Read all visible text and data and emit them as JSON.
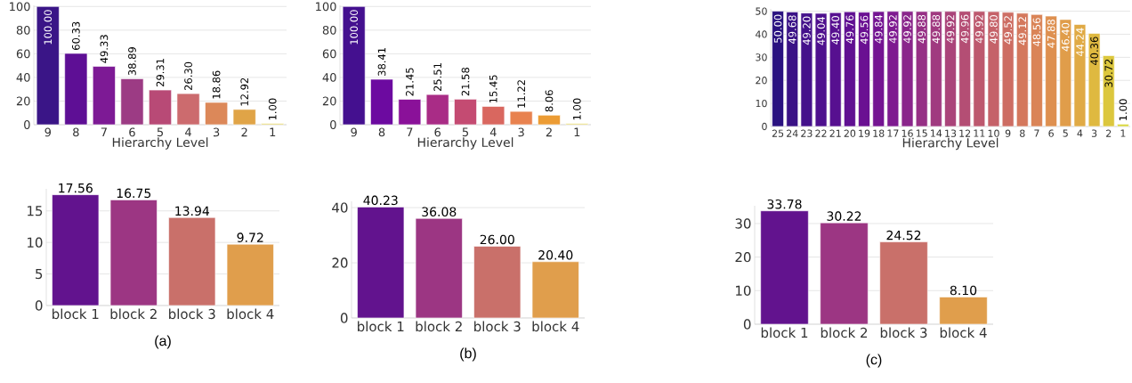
{
  "chart_data": [
    {
      "type": "bar",
      "xlabel": "Hierarchy Level",
      "categories": [
        "9",
        "8",
        "7",
        "6",
        "5",
        "4",
        "3",
        "2",
        "1"
      ],
      "values": [
        100.0,
        60.33,
        49.33,
        38.89,
        29.31,
        26.3,
        18.86,
        12.92,
        1.0
      ],
      "value_labels": [
        "100.00",
        "60.33",
        "49.33",
        "38.89",
        "29.31",
        "26.30",
        "18.86",
        "12.92",
        "1.00"
      ],
      "colors": [
        "#3a1587",
        "#5e0f95",
        "#7d1a95",
        "#9c3b84",
        "#b84a76",
        "#cc6b6e",
        "#dc8859",
        "#e0a447",
        "#e4d360"
      ],
      "ylim": [
        0,
        101
      ],
      "yticks": [
        0,
        20,
        40,
        60,
        80,
        100
      ],
      "grid": "y"
    },
    {
      "type": "bar",
      "xlabel": "Hierarchy Level",
      "categories": [
        "9",
        "8",
        "7",
        "6",
        "5",
        "4",
        "3",
        "2",
        "1"
      ],
      "values": [
        100.0,
        38.41,
        21.45,
        25.51,
        21.58,
        15.45,
        11.22,
        8.06,
        1.0
      ],
      "value_labels": [
        "100.00",
        "38.41",
        "21.45",
        "25.51",
        "21.58",
        "15.45",
        "11.22",
        "8.06",
        "1.00"
      ],
      "colors": [
        "#44108f",
        "#6c0aa0",
        "#8a1199",
        "#a92c86",
        "#c44b72",
        "#d9675f",
        "#e8824f",
        "#ec9c34",
        "#e8d86a"
      ],
      "ylim": [
        0,
        101
      ],
      "yticks": [
        0,
        20,
        40,
        60,
        80,
        100
      ],
      "grid": "y"
    },
    {
      "type": "bar",
      "xlabel": "Hierarchy Level",
      "categories": [
        "25",
        "24",
        "23",
        "22",
        "21",
        "20",
        "19",
        "18",
        "17",
        "16",
        "15",
        "14",
        "13",
        "12",
        "11",
        "10",
        "9",
        "8",
        "7",
        "6",
        "5",
        "4",
        "3",
        "2",
        "1"
      ],
      "values": [
        50.0,
        49.68,
        49.2,
        49.04,
        49.4,
        49.76,
        49.56,
        49.84,
        49.92,
        49.92,
        49.88,
        49.88,
        49.92,
        49.96,
        49.92,
        49.8,
        49.52,
        49.12,
        48.56,
        47.88,
        46.4,
        44.24,
        40.36,
        30.72,
        1.0
      ],
      "value_labels": [
        "50.00",
        "49.68",
        "49.20",
        "49.04",
        "49.40",
        "49.76",
        "49.56",
        "49.84",
        "49.92",
        "49.92",
        "49.88",
        "49.88",
        "49.92",
        "49.96",
        "49.92",
        "49.80",
        "49.52",
        "49.12",
        "48.56",
        "47.88",
        "46.40",
        "44.24",
        "40.36",
        "30.72",
        "1.00"
      ],
      "colors": [
        "#2a1280",
        "#3a1286",
        "#44118b",
        "#4e108e",
        "#571090",
        "#601092",
        "#6a1092",
        "#741492",
        "#7e1a90",
        "#8a258b",
        "#963085",
        "#a03a80",
        "#aa447a",
        "#b44e74",
        "#bd586e",
        "#c56269",
        "#cd6d63",
        "#d4785d",
        "#da8457",
        "#de9050",
        "#e09d4a",
        "#e0aa45",
        "#dfb940",
        "#dcc73d",
        "#d8d63c"
      ],
      "ylim": [
        0,
        51
      ],
      "yticks": [
        0,
        10,
        20,
        30,
        40,
        50
      ],
      "grid": "y"
    },
    {
      "type": "bar",
      "categories": [
        "block 1",
        "block 2",
        "block 3",
        "block 4"
      ],
      "values": [
        17.56,
        16.75,
        13.94,
        9.72
      ],
      "value_labels": [
        "17.56",
        "16.75",
        "13.94",
        "9.72"
      ],
      "colors": [
        "#62138e",
        "#9c3683",
        "#c9706a",
        "#e09e4c"
      ],
      "ylim": [
        0,
        18.5
      ],
      "yticks": [
        0,
        5,
        10,
        15
      ],
      "grid": "y",
      "annotations": [
        "(a)"
      ]
    },
    {
      "type": "bar",
      "categories": [
        "block 1",
        "block 2",
        "block 3",
        "block 4"
      ],
      "values": [
        40.23,
        36.08,
        26.0,
        20.4
      ],
      "value_labels": [
        "40.23",
        "36.08",
        "26.00",
        "20.40"
      ],
      "colors": [
        "#62138e",
        "#9c3683",
        "#c9706a",
        "#e09e4c"
      ],
      "ylim": [
        0,
        42.3
      ],
      "yticks": [
        0,
        20,
        40
      ],
      "grid": "y",
      "annotations": [
        "(b)"
      ]
    },
    {
      "type": "bar",
      "categories": [
        "block 1",
        "block 2",
        "block 3",
        "block 4"
      ],
      "values": [
        33.78,
        30.22,
        24.52,
        8.1
      ],
      "value_labels": [
        "33.78",
        "30.22",
        "24.52",
        "8.10"
      ],
      "colors": [
        "#62138e",
        "#9c3683",
        "#c9706a",
        "#e09e4c"
      ],
      "ylim": [
        0,
        35.3
      ],
      "yticks": [
        0,
        10,
        20,
        30
      ],
      "grid": "y",
      "annotations": [
        "(c)"
      ]
    }
  ]
}
